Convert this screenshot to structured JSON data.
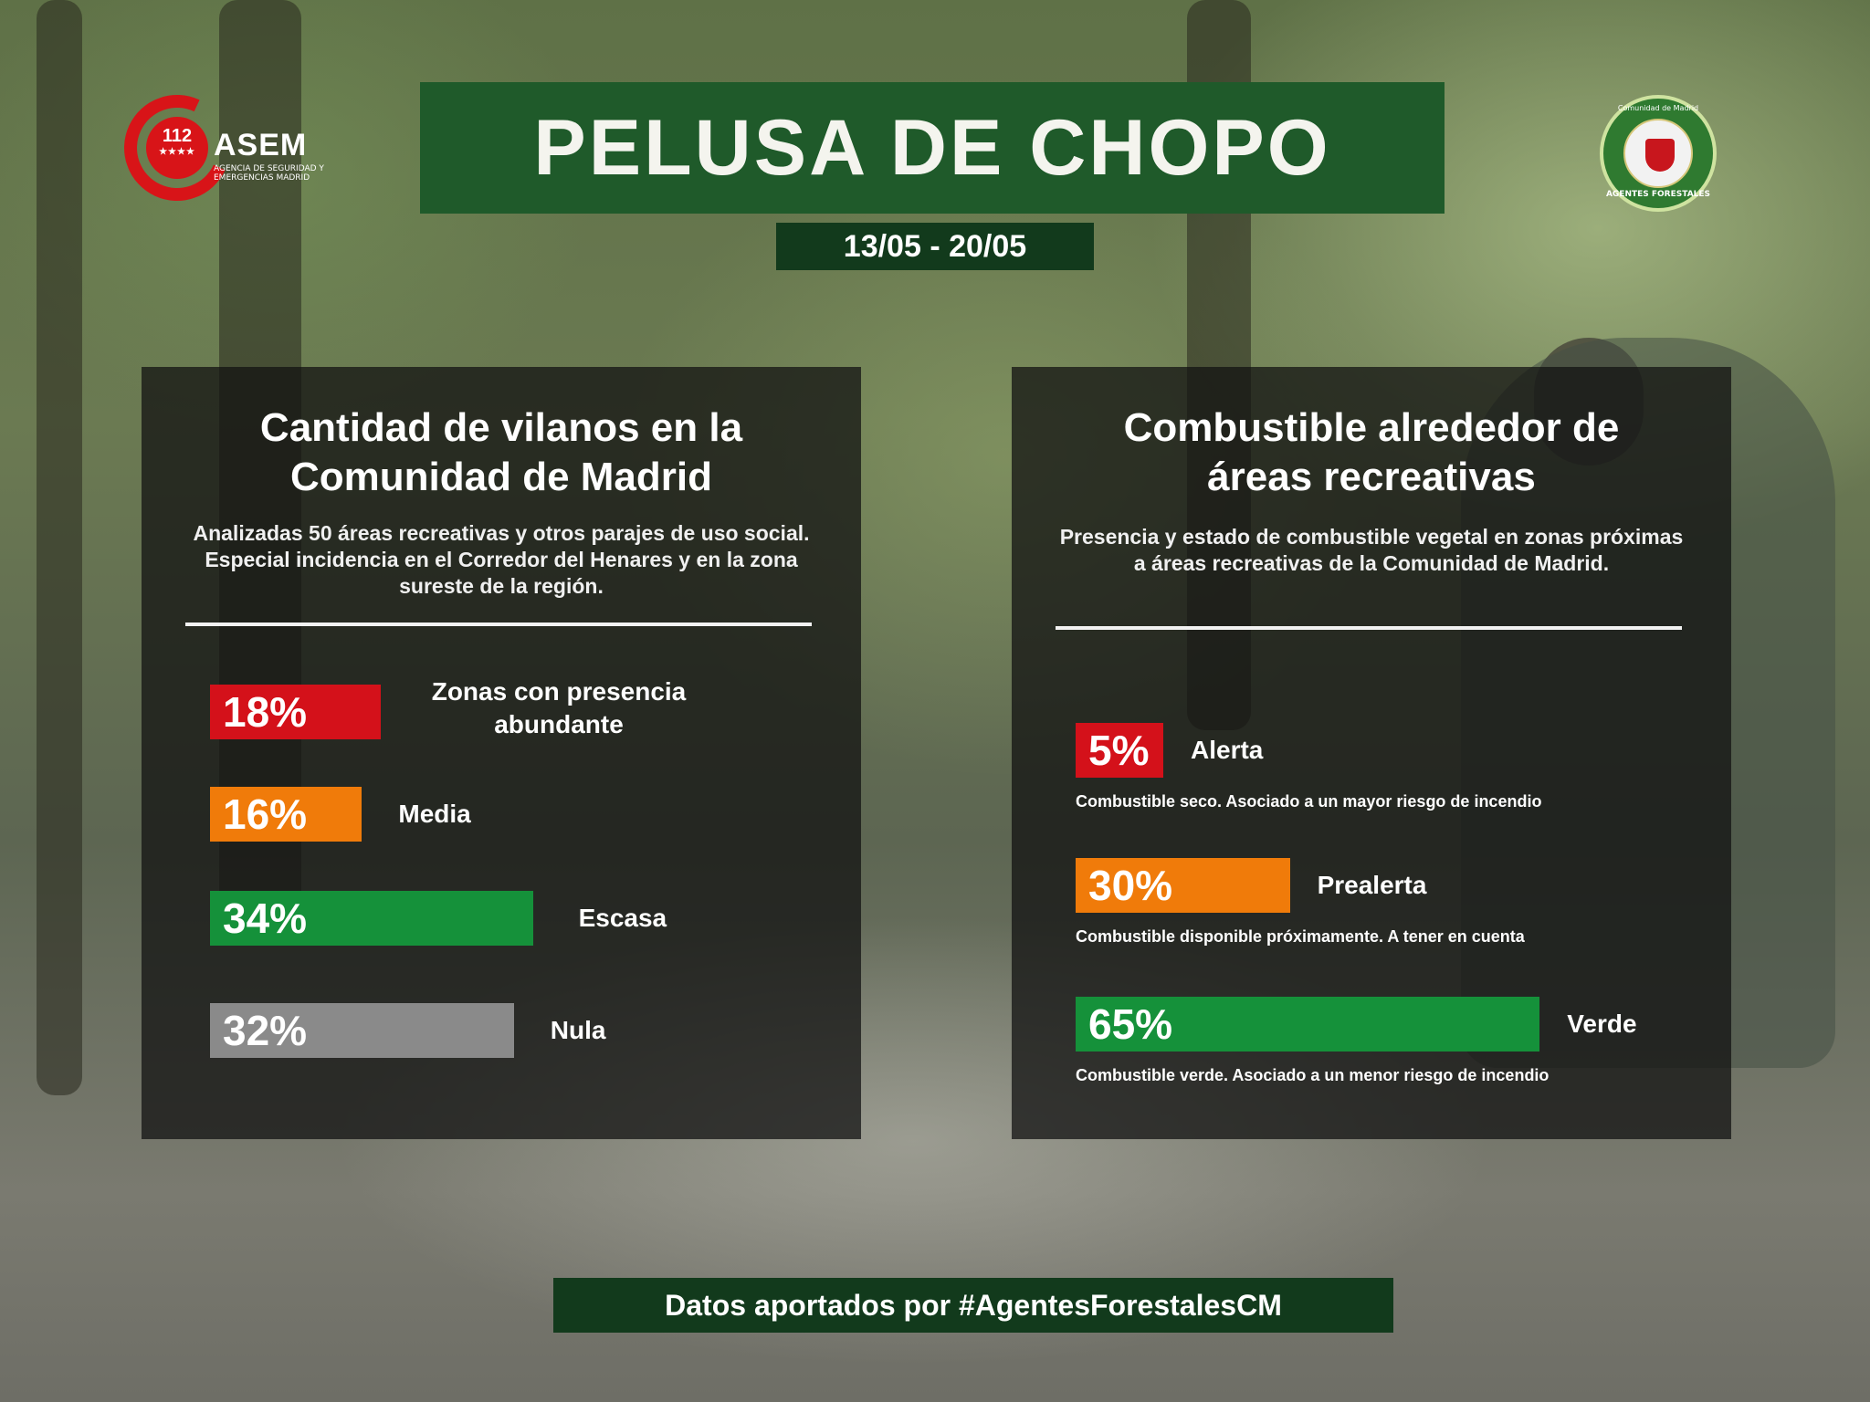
{
  "header": {
    "title": "PELUSA DE CHOPO",
    "date_range": "13/05 - 20/05"
  },
  "logos": {
    "left": {
      "number": "112",
      "stars": "★★★★",
      "name": "ASEM",
      "subtitle": "AGENCIA DE SEGURIDAD Y EMERGENCIAS MADRID"
    },
    "right": {
      "ring_top": "Comunidad de Madrid",
      "ring_bottom": "AGENTES FORESTALES"
    }
  },
  "colors": {
    "red": "#d4111a",
    "orange": "#f07b0a",
    "green": "#15913a",
    "gray": "#8a8a8a",
    "title_bg": "#1f5a2a",
    "dark_green": "#123a1c"
  },
  "left_panel": {
    "title_line1": "Cantidad de vilanos en la",
    "title_line2": "Comunidad de Madrid",
    "subtitle": "Analizadas 50 áreas recreativas y otros parajes de uso social. Especial incidencia en el Corredor del Henares y en la zona sureste de la región."
  },
  "right_panel": {
    "title_line1": "Combustible alrededor de",
    "title_line2": "áreas recreativas",
    "subtitle": "Presencia y estado de combustible vegetal en zonas próximas a áreas recreativas de la Comunidad de Madrid."
  },
  "chart_data": [
    {
      "type": "bar",
      "title": "Cantidad de vilanos en la Comunidad de Madrid",
      "orientation": "horizontal",
      "categories": [
        "Zonas con presencia abundante",
        "Media",
        "Escasa",
        "Nula"
      ],
      "values": [
        18,
        16,
        34,
        32
      ],
      "value_labels": [
        "18%",
        "16%",
        "34%",
        "32%"
      ],
      "colors": [
        "#d4111a",
        "#f07b0a",
        "#15913a",
        "#8a8a8a"
      ],
      "unit": "%"
    },
    {
      "type": "bar",
      "title": "Combustible alrededor de áreas recreativas",
      "orientation": "horizontal",
      "categories": [
        "Alerta",
        "Prealerta",
        "Verde"
      ],
      "values": [
        5,
        30,
        65
      ],
      "value_labels": [
        "5%",
        "30%",
        "65%"
      ],
      "descriptions": [
        "Combustible seco. Asociado a un mayor riesgo de incendio",
        "Combustible disponible próximamente. A tener en cuenta",
        "Combustible verde. Asociado a un menor riesgo de incendio"
      ],
      "colors": [
        "#d4111a",
        "#f07b0a",
        "#15913a"
      ],
      "unit": "%"
    }
  ],
  "footer": {
    "text": "Datos aportados por #AgentesForestalesCM"
  }
}
